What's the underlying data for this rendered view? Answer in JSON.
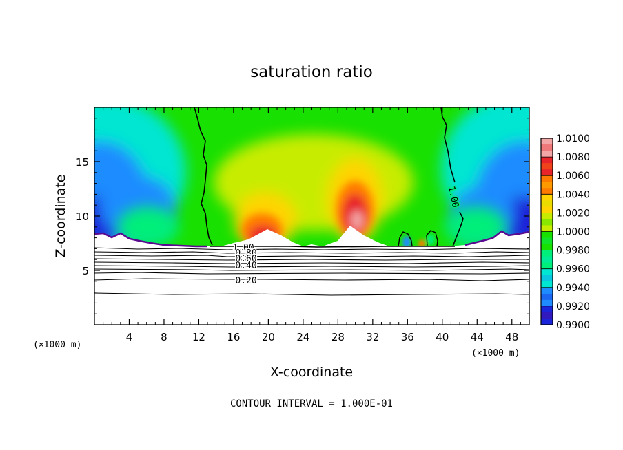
{
  "chart_data": {
    "type": "heatmap",
    "title": "saturation ratio",
    "xlabel": "X-coordinate",
    "ylabel": "Z-coordinate",
    "x_unit": "(×1000 m)",
    "y_unit": "(×1000 m)",
    "xlim": [
      0,
      50
    ],
    "ylim": [
      0,
      20
    ],
    "x_ticks": [
      4,
      8,
      12,
      16,
      20,
      24,
      28,
      32,
      36,
      40,
      44,
      48
    ],
    "y_ticks": [
      5,
      10,
      15
    ],
    "colorbar": {
      "levels": [
        "1.0100",
        "1.0080",
        "1.0060",
        "1.0040",
        "1.0020",
        "1.0000",
        "0.9980",
        "0.9960",
        "0.9940",
        "0.9920",
        "0.9900"
      ],
      "min": 0.99,
      "max": 1.01,
      "colors": [
        "#f2a6a6",
        "#e8242a",
        "#ff7a00",
        "#ffd400",
        "#c8ec00",
        "#18e000",
        "#00ee7a",
        "#00e6d2",
        "#1e8cff",
        "#1a24d8",
        "#5a0a90"
      ]
    },
    "contour_labels": [
      "1.00",
      "0.80",
      "0.60",
      "0.40",
      "0.20"
    ],
    "contour_interval_text": "CONTOUR INTERVAL = 1.000E-01",
    "surface_height_km": 7.3
  }
}
